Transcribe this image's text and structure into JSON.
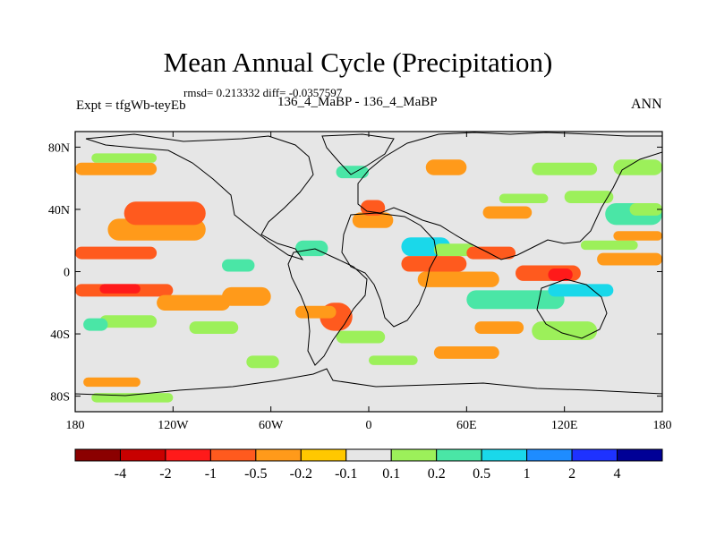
{
  "title": "Mean Annual Cycle (Precipitation)",
  "stats": "rmsd= 0.213332 diff= -0.0357597",
  "experiment": "Expt = tfgWb-teyEb",
  "cases": "136_4_MaBP - 136_4_MaBP",
  "season": "ANN",
  "chart_data": {
    "type": "heatmap",
    "title": "Mean Annual Cycle (Precipitation)",
    "variable": "precipitation difference",
    "x_range": [
      -180,
      180
    ],
    "y_range": [
      -90,
      90
    ],
    "x_ticks": [
      {
        "value": -180,
        "label": "180"
      },
      {
        "value": -120,
        "label": "120W"
      },
      {
        "value": -60,
        "label": "60W"
      },
      {
        "value": 0,
        "label": "0"
      },
      {
        "value": 60,
        "label": "60E"
      },
      {
        "value": 120,
        "label": "120E"
      },
      {
        "value": 180,
        "label": "180"
      }
    ],
    "y_ticks": [
      {
        "value": 80,
        "label": "80N"
      },
      {
        "value": 40,
        "label": "40N"
      },
      {
        "value": 0,
        "label": "0"
      },
      {
        "value": -40,
        "label": "40S"
      },
      {
        "value": -80,
        "label": "80S"
      }
    ],
    "colorbar": {
      "levels": [
        "-4",
        "-2",
        "-1",
        "-0.5",
        "-0.2",
        "-0.1",
        "0.1",
        "0.2",
        "0.5",
        "1",
        "2",
        "4"
      ],
      "colors": [
        "#8b0000",
        "#c80000",
        "#ff1a1a",
        "#ff5a1e",
        "#ff9a1a",
        "#ffc800",
        "#e6e6e6",
        "#9cf05a",
        "#4ae6a6",
        "#1ad8ea",
        "#1e8cff",
        "#1e32ff",
        "#000096"
      ]
    },
    "regions": [
      {
        "lon": [
          -180,
          -130
        ],
        "lat": [
          8,
          16
        ],
        "level": "-0.5"
      },
      {
        "lon": [
          -180,
          -120
        ],
        "lat": [
          -16,
          -8
        ],
        "level": "-0.5"
      },
      {
        "lon": [
          -165,
          -140
        ],
        "lat": [
          -14,
          -8
        ],
        "level": "-1"
      },
      {
        "lon": [
          -160,
          -100
        ],
        "lat": [
          20,
          34
        ],
        "level": "-0.2"
      },
      {
        "lon": [
          -150,
          -100
        ],
        "lat": [
          30,
          45
        ],
        "level": "-0.5"
      },
      {
        "lon": [
          -130,
          -85
        ],
        "lat": [
          -25,
          -15
        ],
        "level": "-0.2"
      },
      {
        "lon": [
          -90,
          -60
        ],
        "lat": [
          -22,
          -10
        ],
        "level": "-0.2"
      },
      {
        "lon": [
          -165,
          -130
        ],
        "lat": [
          -36,
          -28
        ],
        "level": "0.1"
      },
      {
        "lon": [
          -110,
          -80
        ],
        "lat": [
          -40,
          -32
        ],
        "level": "0.1"
      },
      {
        "lon": [
          -175,
          -160
        ],
        "lat": [
          -38,
          -30
        ],
        "level": "0.2"
      },
      {
        "lon": [
          -90,
          -70
        ],
        "lat": [
          0,
          8
        ],
        "level": "0.2"
      },
      {
        "lon": [
          -45,
          -25
        ],
        "lat": [
          10,
          20
        ],
        "level": "0.2"
      },
      {
        "lon": [
          -30,
          -10
        ],
        "lat": [
          -38,
          -20
        ],
        "level": "-0.5"
      },
      {
        "lon": [
          -45,
          -20
        ],
        "lat": [
          -30,
          -22
        ],
        "level": "-0.2"
      },
      {
        "lon": [
          -20,
          10
        ],
        "lat": [
          -46,
          -38
        ],
        "level": "0.1"
      },
      {
        "lon": [
          -10,
          15
        ],
        "lat": [
          28,
          38
        ],
        "level": "-0.2"
      },
      {
        "lon": [
          -5,
          10
        ],
        "lat": [
          36,
          46
        ],
        "level": "-0.5"
      },
      {
        "lon": [
          20,
          50
        ],
        "lat": [
          10,
          22
        ],
        "level": "0.5"
      },
      {
        "lon": [
          40,
          65
        ],
        "lat": [
          10,
          18
        ],
        "level": "0.1"
      },
      {
        "lon": [
          20,
          60
        ],
        "lat": [
          0,
          10
        ],
        "level": "-0.5"
      },
      {
        "lon": [
          60,
          90
        ],
        "lat": [
          8,
          16
        ],
        "level": "-0.5"
      },
      {
        "lon": [
          70,
          100
        ],
        "lat": [
          34,
          42
        ],
        "level": "-0.2"
      },
      {
        "lon": [
          80,
          110
        ],
        "lat": [
          44,
          50
        ],
        "level": "0.1"
      },
      {
        "lon": [
          30,
          80
        ],
        "lat": [
          -10,
          0
        ],
        "level": "-0.2"
      },
      {
        "lon": [
          90,
          130
        ],
        "lat": [
          -6,
          4
        ],
        "level": "-0.5"
      },
      {
        "lon": [
          110,
          125
        ],
        "lat": [
          -6,
          2
        ],
        "level": "-1"
      },
      {
        "lon": [
          140,
          180
        ],
        "lat": [
          4,
          12
        ],
        "level": "-0.2"
      },
      {
        "lon": [
          130,
          165
        ],
        "lat": [
          14,
          20
        ],
        "level": "0.1"
      },
      {
        "lon": [
          150,
          180
        ],
        "lat": [
          20,
          26
        ],
        "level": "-0.2"
      },
      {
        "lon": [
          145,
          180
        ],
        "lat": [
          30,
          44
        ],
        "level": "0.2"
      },
      {
        "lon": [
          160,
          180
        ],
        "lat": [
          36,
          44
        ],
        "level": "0.1"
      },
      {
        "lon": [
          120,
          150
        ],
        "lat": [
          44,
          52
        ],
        "level": "0.1"
      },
      {
        "lon": [
          60,
          120
        ],
        "lat": [
          -24,
          -12
        ],
        "level": "0.2"
      },
      {
        "lon": [
          110,
          150
        ],
        "lat": [
          -16,
          -8
        ],
        "level": "0.5"
      },
      {
        "lon": [
          100,
          140
        ],
        "lat": [
          -44,
          -32
        ],
        "level": "0.1"
      },
      {
        "lon": [
          65,
          95
        ],
        "lat": [
          -40,
          -32
        ],
        "level": "-0.2"
      },
      {
        "lon": [
          0,
          30
        ],
        "lat": [
          -60,
          -54
        ],
        "level": "0.1"
      },
      {
        "lon": [
          40,
          80
        ],
        "lat": [
          -56,
          -48
        ],
        "level": "-0.2"
      },
      {
        "lon": [
          -75,
          -55
        ],
        "lat": [
          -62,
          -54
        ],
        "level": "0.1"
      },
      {
        "lon": [
          -170,
          -120
        ],
        "lat": [
          -84,
          -78
        ],
        "level": "0.1"
      },
      {
        "lon": [
          -175,
          -140
        ],
        "lat": [
          -74,
          -68
        ],
        "level": "-0.2"
      },
      {
        "lon": [
          -180,
          -130
        ],
        "lat": [
          62,
          70
        ],
        "level": "-0.2"
      },
      {
        "lon": [
          -170,
          -130
        ],
        "lat": [
          70,
          76
        ],
        "level": "0.1"
      },
      {
        "lon": [
          150,
          180
        ],
        "lat": [
          62,
          72
        ],
        "level": "0.1"
      },
      {
        "lon": [
          35,
          60
        ],
        "lat": [
          62,
          72
        ],
        "level": "-0.2"
      },
      {
        "lon": [
          100,
          140
        ],
        "lat": [
          62,
          70
        ],
        "level": "0.1"
      },
      {
        "lon": [
          -20,
          0
        ],
        "lat": [
          60,
          68
        ],
        "level": "0.2"
      }
    ]
  }
}
